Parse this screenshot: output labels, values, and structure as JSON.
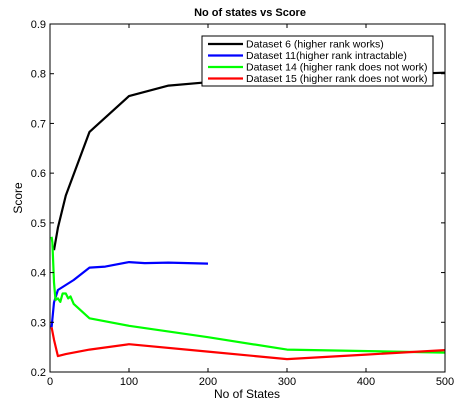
{
  "chart_data": {
    "type": "line",
    "title": "No of states vs Score",
    "xlabel": "No of States",
    "ylabel": "Score",
    "xlim": [
      0,
      500
    ],
    "ylim": [
      0.2,
      0.9
    ],
    "xticks": [
      0,
      100,
      200,
      300,
      400,
      500
    ],
    "yticks": [
      0.2,
      0.3,
      0.4,
      0.5,
      0.6,
      0.7,
      0.8,
      0.9
    ],
    "grid": false,
    "legend_position": "top-right",
    "series": [
      {
        "name": "Dataset 6 (higher rank works)",
        "color": "#000000",
        "x": [
          5,
          10,
          20,
          50,
          100,
          150,
          200,
          300,
          400,
          500
        ],
        "y": [
          0.445,
          0.49,
          0.555,
          0.683,
          0.755,
          0.776,
          0.783,
          0.79,
          0.797,
          0.802
        ]
      },
      {
        "name": "Dataset 11(higher rank intractable)",
        "color": "#0000ff",
        "x": [
          2,
          5,
          10,
          20,
          30,
          50,
          70,
          100,
          120,
          150,
          200
        ],
        "y": [
          0.29,
          0.34,
          0.365,
          0.375,
          0.385,
          0.41,
          0.412,
          0.421,
          0.419,
          0.42,
          0.418
        ]
      },
      {
        "name": "Dataset 14 (higher rank does not work)",
        "color": "#00ff00",
        "x": [
          2,
          3,
          5,
          7,
          10,
          13,
          16,
          20,
          23,
          26,
          30,
          50,
          100,
          200,
          300,
          500
        ],
        "y": [
          0.472,
          0.46,
          0.38,
          0.345,
          0.348,
          0.341,
          0.358,
          0.358,
          0.348,
          0.352,
          0.337,
          0.308,
          0.293,
          0.27,
          0.245,
          0.239
        ]
      },
      {
        "name": "Dataset 15 (higher rank does not work)",
        "color": "#ff0000",
        "x": [
          2,
          5,
          10,
          20,
          50,
          100,
          200,
          300,
          400,
          500
        ],
        "y": [
          0.29,
          0.265,
          0.232,
          0.236,
          0.245,
          0.256,
          0.241,
          0.226,
          0.235,
          0.244
        ]
      }
    ]
  }
}
